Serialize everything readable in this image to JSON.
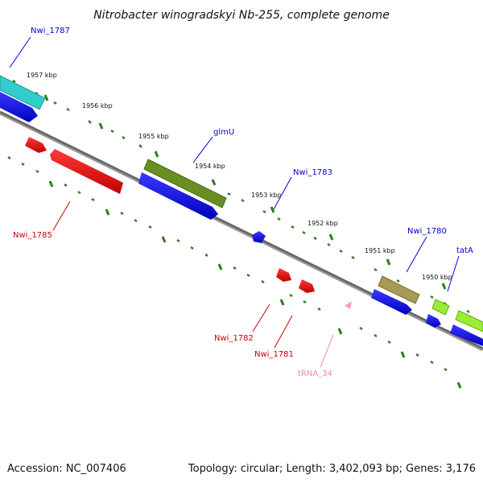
{
  "title": "Nitrobacter winogradskyi Nb-255, complete genome",
  "footer": {
    "accession": "Accession: NC_007406",
    "summary": "Topology: circular; Length: 3,402,093 bp; Genes: 3,176"
  },
  "kbp_labels": [
    "1957 kbp",
    "1956 kbp",
    "1955 kbp",
    "1954 kbp",
    "1953 kbp",
    "1952 kbp",
    "1951 kbp",
    "1950 kbp"
  ],
  "gene_labels": [
    {
      "text": "Nwi_1787",
      "color": "#0000cc"
    },
    {
      "text": "glmU",
      "color": "#0000cc"
    },
    {
      "text": "Nwi_1783",
      "color": "#0000cc"
    },
    {
      "text": "Nwi_1780",
      "color": "#0000cc"
    },
    {
      "text": "tatA",
      "color": "#0000cc"
    },
    {
      "text": "Nwi_1785",
      "color": "#cc0000"
    },
    {
      "text": "Nwi_1782",
      "color": "#cc0000"
    },
    {
      "text": "Nwi_1781",
      "color": "#cc0000"
    },
    {
      "text": "tRNA_34",
      "color": "#ee88aa"
    }
  ],
  "colors": {
    "backbone": "#777777",
    "tick": "#2e7d1e",
    "cds_forward": "#0000ee",
    "cds_reverse": "#ee0000",
    "cyan_feature": "#33cccc",
    "olive_feature": "#6b8e23",
    "khaki_feature": "#a89a55",
    "lime_feature": "#99ee33",
    "trna": "#ff99cc"
  }
}
